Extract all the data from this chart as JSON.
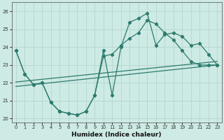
{
  "xlabel": "Humidex (Indice chaleur)",
  "xlim": [
    -0.5,
    23.5
  ],
  "ylim": [
    19.8,
    26.5
  ],
  "yticks": [
    20,
    21,
    22,
    23,
    24,
    25,
    26
  ],
  "xticks": [
    0,
    1,
    2,
    3,
    4,
    5,
    6,
    7,
    8,
    9,
    10,
    11,
    12,
    13,
    14,
    15,
    16,
    17,
    18,
    19,
    20,
    21,
    22,
    23
  ],
  "bg_color": "#cdeae4",
  "line_color": "#2d7b6e",
  "grid_color": "#b8d8d2",
  "line1_x": [
    0,
    1,
    2,
    3,
    4,
    5,
    6,
    7,
    8,
    9,
    10,
    11,
    12,
    13,
    14,
    15,
    16,
    17,
    18,
    19,
    20,
    21,
    22,
    23
  ],
  "line1_y": [
    23.8,
    22.5,
    21.9,
    22.0,
    20.9,
    20.4,
    20.3,
    20.2,
    20.4,
    21.3,
    23.8,
    21.3,
    24.0,
    25.4,
    25.6,
    25.9,
    24.1,
    24.7,
    24.8,
    24.6,
    24.1,
    24.2,
    23.6,
    23.0
  ],
  "line2_x": [
    0,
    1,
    2,
    3,
    4,
    5,
    6,
    7,
    8,
    9,
    10,
    11,
    12,
    13,
    14,
    15,
    16,
    17,
    18,
    19,
    20,
    21,
    22,
    23
  ],
  "line2_y": [
    23.8,
    22.5,
    21.9,
    22.0,
    20.9,
    20.4,
    20.3,
    20.2,
    20.4,
    21.3,
    23.5,
    23.6,
    24.1,
    24.5,
    24.8,
    25.5,
    25.3,
    24.8,
    24.4,
    23.8,
    23.2,
    23.0,
    23.0,
    23.0
  ],
  "trend1_x": [
    0,
    23
  ],
  "trend1_y": [
    22.05,
    23.2
  ],
  "trend2_x": [
    0,
    23
  ],
  "trend2_y": [
    21.8,
    23.0
  ]
}
